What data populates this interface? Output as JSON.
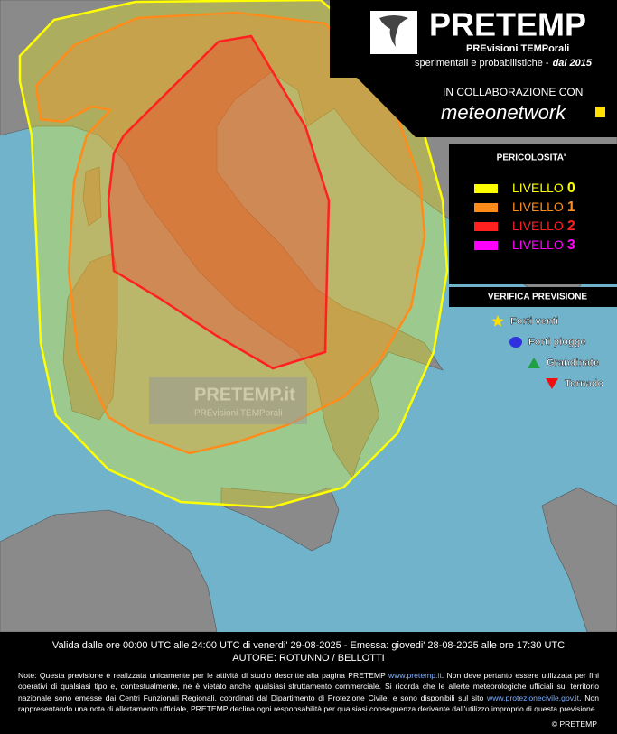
{
  "header": {
    "title": "PRETEMP",
    "subtitle": "PREvisioni TEMPorali",
    "tagline": "sperimentali e probabilistiche -",
    "tagline_em": "dal 2015"
  },
  "collaboration": {
    "label": "IN COLLABORAZIONE CON",
    "partner": "meteonetwork"
  },
  "legend": {
    "title": "PERICOLOSITA'",
    "items": [
      {
        "label": "LIVELLO",
        "level": "0",
        "color": "#ffff00"
      },
      {
        "label": "LIVELLO",
        "level": "1",
        "color": "#ff8c1a"
      },
      {
        "label": "LIVELLO",
        "level": "2",
        "color": "#ff2020"
      },
      {
        "label": "LIVELLO",
        "level": "3",
        "color": "#ff00ff"
      }
    ]
  },
  "verification": {
    "title": "VERIFICA PREVISIONE",
    "items": [
      {
        "label": "Forti venti",
        "color": "#ffe000"
      },
      {
        "label": "Forti piogge",
        "color": "#3030e0"
      },
      {
        "label": "Grandinate",
        "color": "#20a040"
      },
      {
        "label": "Tornado",
        "color": "#ee1010"
      }
    ]
  },
  "watermark": {
    "title": "PRETEMP.it",
    "subtitle": "PREvisioni TEMPorali"
  },
  "footer": {
    "validity": "Valida dalle ore 00:00 UTC alle 24:00 UTC di venerdi' 29-08-2025 - Emessa: giovedi' 28-08-2025 alle ore 17:30 UTC",
    "authors": "AUTORE: ROTUNNO / BELLOTTI",
    "note": [
      "Note: Questa previsione è realizzata unicamente per le attività di studio descritte alla pagina PRETEMP ",
      "www.pretemp.it",
      ". Non deve pertanto essere utilizzata per fini operativi di qualsiasi tipo e, contestualmente, ne è vietato anche qualsiasi sfruttamento commerciale. Si ricorda che le allerte meteorologiche ufficiali sul territorio nazionale sono emesse dai Centri Funzionali Regionali, coordinati dal Dipartimento di Protezione Civile, e sono disponibili sul sito ",
      "www.protezionecivile.gov.it",
      ". Non rappresentando una nota di allertamento ufficiale, PRETEMP declina ogni responsabilità per qualsiasi conseguenza derivante dall'utilizzo improprio di questa previsione."
    ],
    "copyright": "© PRETEMP"
  }
}
